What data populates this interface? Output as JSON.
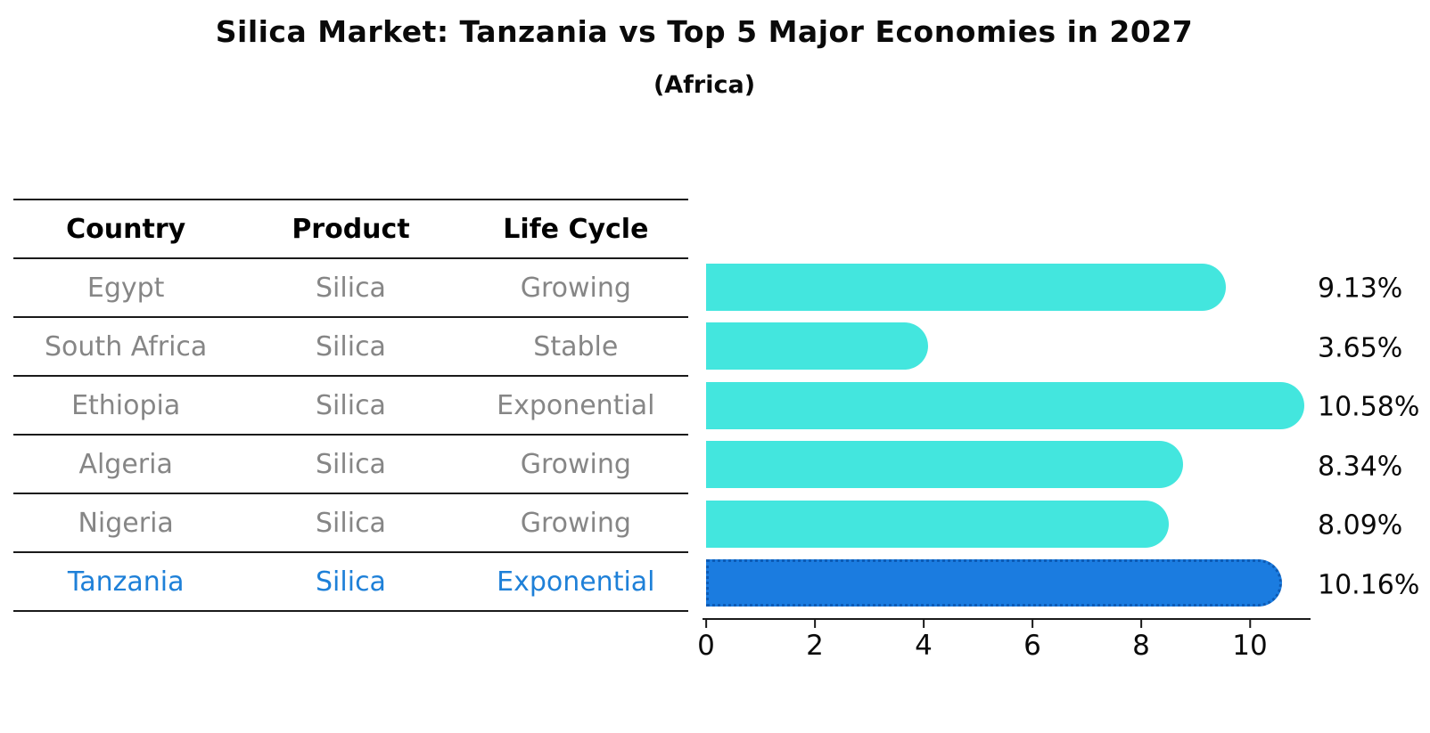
{
  "chart_data": {
    "type": "bar",
    "orientation": "horizontal",
    "title": "Silica Market: Tanzania vs Top 5 Major Economies in 2027",
    "subtitle": "(Africa)",
    "categories": [
      "Egypt",
      "South Africa",
      "Ethiopia",
      "Algeria",
      "Nigeria",
      "Tanzania"
    ],
    "values": [
      9.13,
      3.65,
      10.58,
      8.34,
      8.09,
      10.16
    ],
    "value_labels": [
      "9.13%",
      "3.65%",
      "10.58%",
      "8.34%",
      "8.09%",
      "10.16%"
    ],
    "xticks": [
      "0",
      "2",
      "4",
      "6",
      "8",
      "10"
    ],
    "xlim": [
      0,
      11.1
    ],
    "grid": false,
    "legend": "none",
    "highlight_index": 5,
    "bar_color": "#43E6DE",
    "highlight_bar_color": "#1B7CE0",
    "highlight_border_color": "#0D5BB5",
    "highlight_text_color": "#1E80D8",
    "text_color": "#868686"
  },
  "table": {
    "headers": [
      "Country",
      "Product",
      "Life Cycle"
    ],
    "rows": [
      {
        "country": "Egypt",
        "product": "Silica",
        "life_cycle": "Growing"
      },
      {
        "country": "South Africa",
        "product": "Silica",
        "life_cycle": "Stable"
      },
      {
        "country": "Ethiopia",
        "product": "Silica",
        "life_cycle": "Exponential"
      },
      {
        "country": "Algeria",
        "product": "Silica",
        "life_cycle": "Growing"
      },
      {
        "country": "Nigeria",
        "product": "Silica",
        "life_cycle": "Growing"
      },
      {
        "country": "Tanzania",
        "product": "Silica",
        "life_cycle": "Exponential"
      }
    ]
  }
}
